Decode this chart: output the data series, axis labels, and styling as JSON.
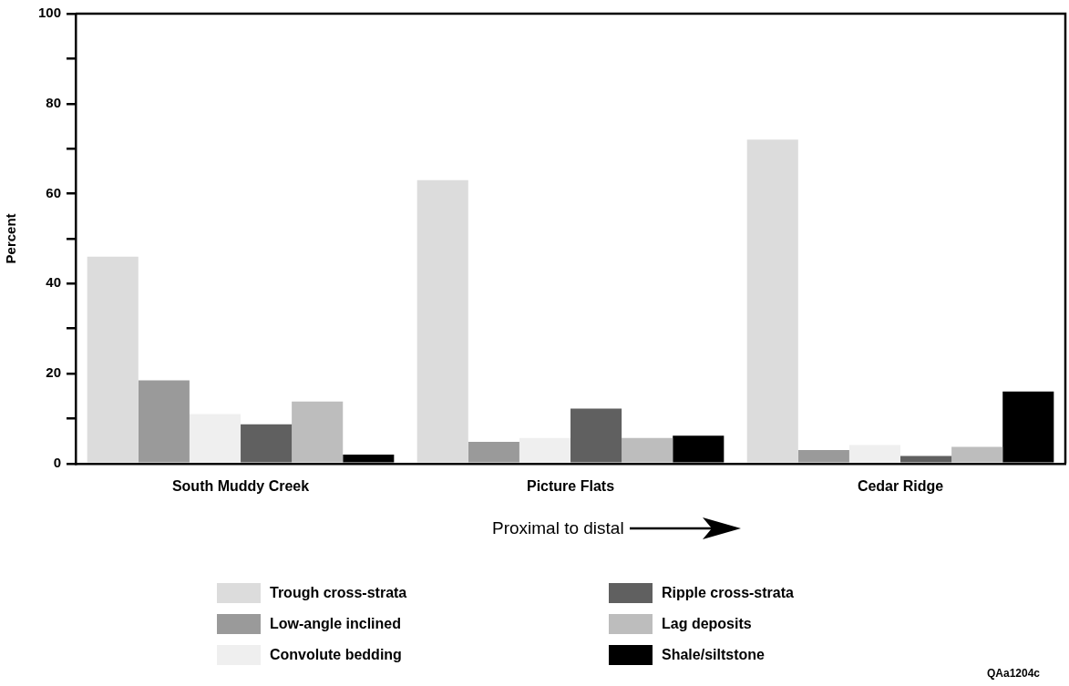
{
  "chart_data": {
    "type": "bar",
    "ylabel": "Percent",
    "categories": [
      "South Muddy Creek",
      "Picture Flats",
      "Cedar Ridge"
    ],
    "series": [
      {
        "name": "Trough cross-strata",
        "color": "#dcdcdc",
        "values": [
          46,
          63,
          72
        ]
      },
      {
        "name": "Low-angle inclined",
        "color": "#9a9a9a",
        "values": [
          18.5,
          4.8,
          3
        ]
      },
      {
        "name": "Convolute bedding",
        "color": "#efefef",
        "values": [
          11,
          5.7,
          4.1
        ]
      },
      {
        "name": "Ripple cross-strata",
        "color": "#606060",
        "values": [
          8.7,
          12.2,
          1.7
        ]
      },
      {
        "name": "Lag deposits",
        "color": "#bdbdbd",
        "values": [
          13.8,
          5.7,
          3.7
        ]
      },
      {
        "name": "Shale/siltstone",
        "color": "#000000",
        "values": [
          2,
          6.2,
          16
        ]
      }
    ],
    "ylim": [
      0,
      100
    ],
    "yticks": [
      0,
      {
        "value": 10,
        "label": null
      },
      20,
      {
        "value": 30,
        "label": null
      },
      40,
      {
        "value": 50,
        "label": null
      },
      60,
      {
        "value": 70,
        "label": null
      },
      80,
      {
        "value": 90,
        "label": null
      },
      100
    ],
    "grid": false,
    "legend": "bottom",
    "annotations": [
      "Proximal to distal",
      "QAa1204c"
    ]
  }
}
